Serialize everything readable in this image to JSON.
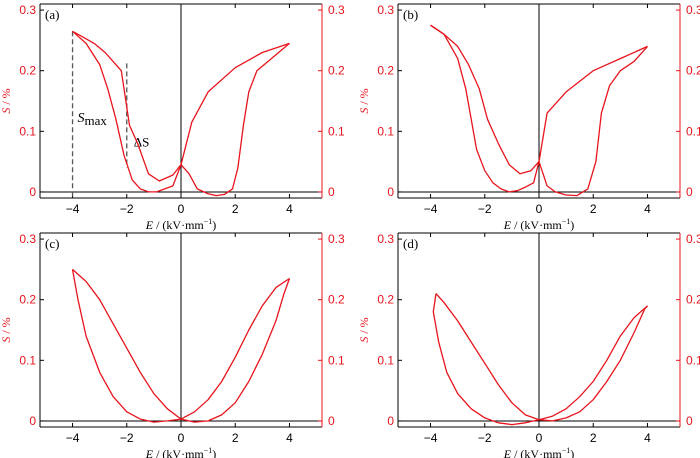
{
  "colors": {
    "curve": "#e8141c",
    "axis_right": "#e8141c",
    "axis": "#000000",
    "guide": "#555555"
  },
  "chart_data": [
    {
      "type": "line",
      "panel_label": "(a)",
      "xlabel_italic": "E",
      "xlabel_rest": " / (kV·mm",
      "xlabel_sup": "−1",
      "xlabel_end": ")",
      "ylabel_italic": "S",
      "ylabel_rest": " / %",
      "xlim": [
        -5.2,
        5.2
      ],
      "ylim": [
        -0.01,
        0.31
      ],
      "xticks": [
        -4,
        -2,
        0,
        2,
        4
      ],
      "xtick_labels": [
        "−4",
        "−2",
        "0",
        "2",
        "4"
      ],
      "yticks": [
        0,
        0.1,
        0.2,
        0.3
      ],
      "ytick_labels": [
        "0",
        "0.1",
        "0.2",
        "0.3"
      ],
      "annotations": {
        "smax_main": "S",
        "smax_sub": "max",
        "delta": "ΔS"
      },
      "guides": [
        {
          "x": -4,
          "y_top": 0.265
        },
        {
          "x": -2,
          "y_top": 0.212,
          "y_bottom": 0.04
        }
      ],
      "series": [
        {
          "x": [
            4.0,
            3.0,
            2.0,
            1.0,
            0.4,
            0.0,
            -0.3,
            -0.8,
            -1.2,
            -1.6,
            -1.9,
            -2.2,
            -2.5,
            -2.8,
            -3.2,
            -3.6,
            -4.0
          ],
          "y": [
            0.245,
            0.23,
            0.205,
            0.165,
            0.115,
            0.045,
            0.028,
            0.018,
            0.03,
            0.08,
            0.11,
            0.2,
            0.215,
            0.23,
            0.245,
            0.255,
            0.265
          ]
        },
        {
          "x": [
            -4.0,
            -3.5,
            -3.0,
            -2.7,
            -2.4,
            -2.1,
            -1.8,
            -1.5,
            -1.2,
            -0.9,
            -0.6,
            -0.3,
            0.0,
            0.3,
            0.6,
            1.0,
            1.3,
            1.6,
            1.9,
            2.1,
            2.3,
            2.5,
            2.8,
            3.2,
            3.6,
            4.0
          ],
          "y": [
            0.265,
            0.245,
            0.21,
            0.17,
            0.12,
            0.06,
            0.02,
            0.005,
            0.0,
            0.0,
            0.005,
            0.01,
            0.045,
            0.03,
            0.005,
            -0.003,
            -0.006,
            -0.004,
            0.005,
            0.04,
            0.11,
            0.165,
            0.2,
            0.215,
            0.23,
            0.245
          ]
        }
      ]
    },
    {
      "type": "line",
      "panel_label": "(b)",
      "xlabel_italic": "E",
      "xlabel_rest": " / (kV·mm",
      "xlabel_sup": "−1",
      "xlabel_end": ")",
      "ylabel_italic": "S",
      "ylabel_rest": " / %",
      "xlim": [
        -5.2,
        5.2
      ],
      "ylim": [
        -0.01,
        0.31
      ],
      "xticks": [
        -4,
        -2,
        0,
        2,
        4
      ],
      "xtick_labels": [
        "−4",
        "−2",
        "0",
        "2",
        "4"
      ],
      "yticks": [
        0,
        0.1,
        0.2,
        0.3
      ],
      "ytick_labels": [
        "0",
        "0.1",
        "0.2",
        "0.3"
      ],
      "series": [
        {
          "x": [
            4.0,
            3.0,
            2.0,
            1.0,
            0.3,
            0.0,
            -0.3,
            -0.7,
            -1.1,
            -1.5,
            -1.9,
            -2.2,
            -2.6,
            -3.0,
            -3.5,
            -4.0
          ],
          "y": [
            0.24,
            0.22,
            0.2,
            0.165,
            0.13,
            0.05,
            0.035,
            0.03,
            0.045,
            0.08,
            0.12,
            0.17,
            0.21,
            0.24,
            0.26,
            0.275
          ]
        },
        {
          "x": [
            -4.0,
            -3.5,
            -3.0,
            -2.7,
            -2.5,
            -2.3,
            -2.0,
            -1.7,
            -1.4,
            -1.1,
            -0.8,
            -0.5,
            -0.2,
            0.0,
            0.3,
            0.6,
            1.0,
            1.4,
            1.8,
            2.1,
            2.3,
            2.6,
            3.0,
            3.5,
            4.0
          ],
          "y": [
            0.275,
            0.26,
            0.22,
            0.17,
            0.12,
            0.07,
            0.035,
            0.015,
            0.005,
            0.0,
            0.002,
            0.008,
            0.015,
            0.05,
            0.01,
            0.0,
            -0.005,
            -0.006,
            0.005,
            0.05,
            0.13,
            0.175,
            0.2,
            0.215,
            0.24
          ]
        }
      ]
    },
    {
      "type": "line",
      "panel_label": "(c)",
      "xlabel_italic": "E",
      "xlabel_rest": " / (kV·mm",
      "xlabel_sup": "−1",
      "xlabel_end": ")",
      "ylabel_italic": "S",
      "ylabel_rest": " / %",
      "xlim": [
        -5.2,
        5.2
      ],
      "ylim": [
        -0.01,
        0.31
      ],
      "xticks": [
        -4,
        -2,
        0,
        2,
        4
      ],
      "xtick_labels": [
        "−4",
        "−2",
        "0",
        "2",
        "4"
      ],
      "yticks": [
        0,
        0.1,
        0.2,
        0.3
      ],
      "ytick_labels": [
        "0",
        "0.1",
        "0.2",
        "0.3"
      ],
      "series": [
        {
          "x": [
            4.0,
            3.5,
            3.0,
            2.5,
            2.0,
            1.5,
            1.0,
            0.5,
            0.0,
            -0.5,
            -1.0,
            -1.5,
            -2.0,
            -2.5,
            -3.0,
            -3.5,
            -4.0
          ],
          "y": [
            0.235,
            0.22,
            0.19,
            0.15,
            0.105,
            0.065,
            0.035,
            0.015,
            0.003,
            0.02,
            0.045,
            0.08,
            0.12,
            0.16,
            0.2,
            0.23,
            0.25
          ]
        },
        {
          "x": [
            -4.0,
            -3.8,
            -3.5,
            -3.0,
            -2.5,
            -2.0,
            -1.5,
            -1.0,
            -0.5,
            0.0,
            0.5,
            1.0,
            1.5,
            2.0,
            2.5,
            3.0,
            3.5,
            3.8,
            4.0
          ],
          "y": [
            0.25,
            0.2,
            0.14,
            0.08,
            0.04,
            0.015,
            0.003,
            -0.002,
            0.0,
            0.003,
            -0.002,
            0.0,
            0.01,
            0.03,
            0.065,
            0.11,
            0.165,
            0.21,
            0.235
          ]
        }
      ]
    },
    {
      "type": "line",
      "panel_label": "(d)",
      "xlabel_italic": "E",
      "xlabel_rest": " / (kV·mm",
      "xlabel_sup": "−1",
      "xlabel_end": ")",
      "ylabel_italic": "S",
      "ylabel_rest": " / %",
      "xlim": [
        -5.2,
        5.2
      ],
      "ylim": [
        -0.01,
        0.31
      ],
      "xticks": [
        -4,
        -2,
        0,
        2,
        4
      ],
      "xtick_labels": [
        "−4",
        "−2",
        "0",
        "2",
        "4"
      ],
      "yticks": [
        0,
        0.1,
        0.2,
        0.3
      ],
      "ytick_labels": [
        "0",
        "0.1",
        "0.2",
        "0.3"
      ],
      "series": [
        {
          "x": [
            4.0,
            3.5,
            3.0,
            2.5,
            2.0,
            1.5,
            1.0,
            0.5,
            0.0,
            -0.5,
            -1.0,
            -1.5,
            -2.0,
            -2.5,
            -3.0,
            -3.5,
            -3.8
          ],
          "y": [
            0.19,
            0.17,
            0.14,
            0.1,
            0.065,
            0.04,
            0.02,
            0.008,
            0.002,
            0.01,
            0.03,
            0.06,
            0.095,
            0.13,
            0.165,
            0.195,
            0.21
          ]
        },
        {
          "x": [
            -3.8,
            -3.9,
            -3.7,
            -3.4,
            -3.0,
            -2.5,
            -2.0,
            -1.5,
            -1.0,
            -0.5,
            0.0,
            0.5,
            1.0,
            1.5,
            2.0,
            2.5,
            3.0,
            3.5,
            3.9,
            4.0
          ],
          "y": [
            0.21,
            0.18,
            0.13,
            0.08,
            0.045,
            0.02,
            0.005,
            -0.003,
            -0.006,
            -0.003,
            0.002,
            0.0,
            0.005,
            0.015,
            0.035,
            0.065,
            0.1,
            0.145,
            0.185,
            0.19
          ]
        }
      ]
    }
  ]
}
